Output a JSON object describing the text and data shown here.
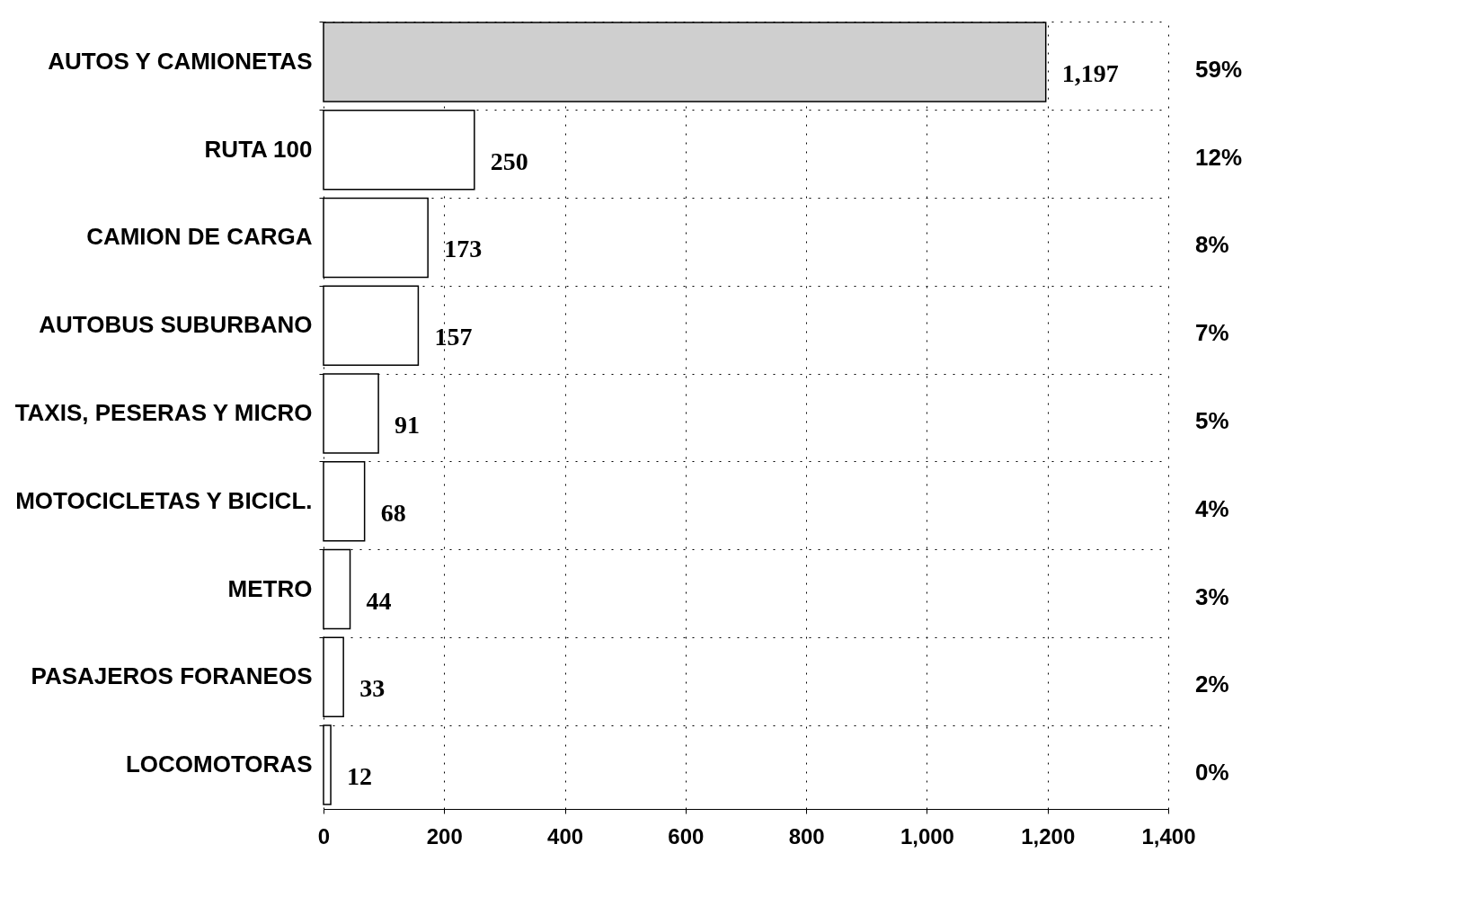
{
  "chart_data": {
    "type": "bar",
    "orientation": "horizontal",
    "categories": [
      "AUTOS Y CAMIONETAS",
      "RUTA 100",
      "CAMION DE CARGA",
      "AUTOBUS SUBURBANO",
      "TAXIS, PESERAS Y MICRO",
      "MOTOCICLETAS Y BICICL.",
      "METRO",
      "PASAJEROS FORANEOS",
      "LOCOMOTORAS"
    ],
    "values": [
      1197,
      250,
      173,
      157,
      91,
      68,
      44,
      33,
      12
    ],
    "colors": [
      "#cfcfcf",
      "#ffffff",
      "#ffffff",
      "#ffffff",
      "#ffffff",
      "#ffffff",
      "#ffffff",
      "#ffffff",
      "#ffffff"
    ],
    "value_labels": [
      "1,197",
      "250",
      "173",
      "157",
      "91",
      "68",
      "44",
      "33",
      "12"
    ],
    "xlim": [
      0,
      1400
    ],
    "xticks": [
      0,
      200,
      400,
      600,
      800,
      {
        "value": 1000,
        "label": "1,000"
      },
      {
        "value": 1200,
        "label": "1,200"
      },
      {
        "value": 1400,
        "label": "1,400"
      }
    ],
    "grid": true,
    "annotations": [
      "59%",
      "12%",
      "8%",
      "7%",
      "5%",
      "4%",
      "3%",
      "2%",
      "0%"
    ]
  }
}
